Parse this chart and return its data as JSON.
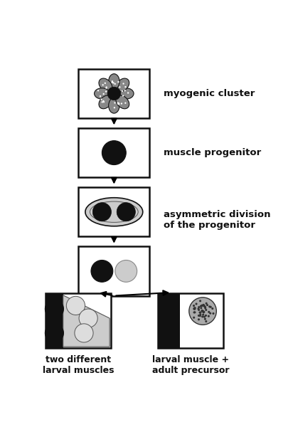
{
  "bg_color": "#ffffff",
  "box_color": "#ffffff",
  "box_edge_color": "#111111",
  "dark_cell": "#111111",
  "light_cell": "#dddddd",
  "label_myogenic_cluster": "myogenic cluster",
  "label_muscle_progenitor": "muscle progenitor",
  "label_asymmetric": "asymmetric division\nof the progenitor",
  "label_larval": "two different\nlarval muscles",
  "label_adult": "larval muscle +\nadult precursor",
  "figsize": [
    4.12,
    6.14
  ],
  "dpi": 100
}
